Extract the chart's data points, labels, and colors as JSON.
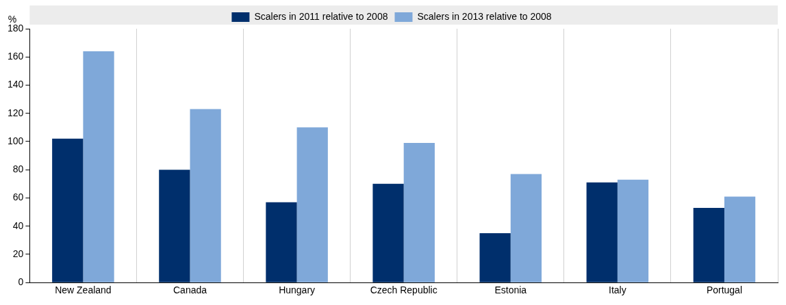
{
  "chart_data": {
    "type": "bar",
    "ylabel": "%",
    "categories": [
      "New Zealand",
      "Canada",
      "Hungary",
      "Czech Republic",
      "Estonia",
      "Italy",
      "Portugal"
    ],
    "series": [
      {
        "name": "Scalers in 2011 relative to 2008",
        "color": "#002f6c",
        "values": [
          102,
          80,
          57,
          70,
          35,
          71,
          53
        ]
      },
      {
        "name": "Scalers in 2013 relative to 2008",
        "color": "#7fa8d9",
        "values": [
          164,
          123,
          110,
          99,
          77,
          73,
          61
        ]
      }
    ],
    "ylim": [
      0,
      180
    ],
    "yticks": [
      0,
      20,
      40,
      60,
      80,
      100,
      120,
      140,
      160,
      180
    ],
    "grid": "x",
    "legend": "top"
  }
}
